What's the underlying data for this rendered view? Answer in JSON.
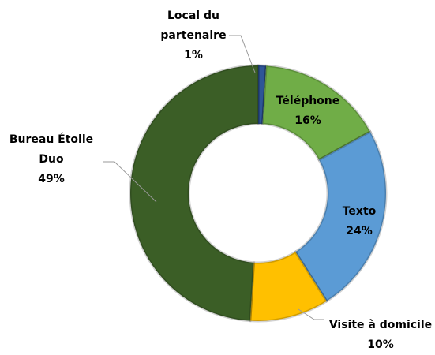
{
  "chart_data": {
    "type": "pie",
    "categories": [
      "Local du partenaire",
      "Téléphone",
      "Texto",
      "Visite à domicile",
      "Bureau Étoile Duo"
    ],
    "values": [
      1,
      16,
      24,
      10,
      49
    ],
    "value_labels": [
      "1%",
      "16%",
      "24%",
      "10%",
      "49%"
    ],
    "colors": [
      "#2e5597",
      "#70ad47",
      "#5b9bd5",
      "#ffc000",
      "#3b5e26"
    ]
  }
}
